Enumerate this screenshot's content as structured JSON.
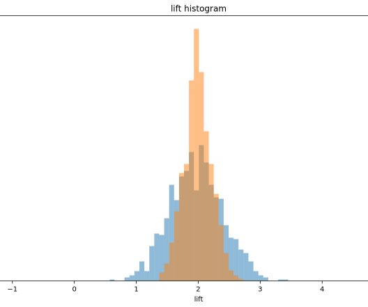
{
  "chart_data": {
    "type": "histogram",
    "title": "lift histogram",
    "x_label": "lift",
    "xlim": [
      -1.2,
      4.74
    ],
    "ylim": [
      0,
      381
    ],
    "xticks": [
      {
        "value": -1,
        "label": "−1"
      },
      0,
      1,
      2,
      3,
      4
    ],
    "alpha": 0.5,
    "series": [
      {
        "color": "#1f77b4",
        "bins": [
          0.57,
          0.65,
          0.73,
          0.81,
          0.89,
          0.97,
          1.05,
          1.13,
          1.21,
          1.29,
          1.37,
          1.45,
          1.53,
          1.61,
          1.69,
          1.77,
          1.85,
          1.93,
          2.01,
          2.09,
          2.17,
          2.25,
          2.33,
          2.41,
          2.49,
          2.57,
          2.65,
          2.73,
          2.81,
          2.89,
          2.97,
          3.05,
          3.13,
          3.21,
          3.29,
          3.37,
          3.45
        ],
        "values": [
          2,
          0,
          0,
          5,
          8,
          14,
          28,
          14,
          50,
          68,
          66,
          90,
          138,
          116,
          150,
          158,
          185,
          130,
          195,
          170,
          138,
          120,
          118,
          80,
          62,
          60,
          45,
          40,
          28,
          14,
          8,
          5,
          0,
          0,
          2,
          2
        ]
      },
      {
        "color": "#ff7f0e",
        "bins": [
          1.37,
          1.45,
          1.53,
          1.61,
          1.69,
          1.77,
          1.85,
          1.93,
          2.01,
          2.09,
          2.17,
          2.25,
          2.33,
          2.41,
          2.49,
          2.57,
          2.65,
          2.73
        ],
        "values": [
          12,
          25,
          55,
          100,
          155,
          168,
          288,
          362,
          300,
          215,
          168,
          125,
          80,
          40,
          15,
          8,
          3
        ]
      }
    ]
  }
}
